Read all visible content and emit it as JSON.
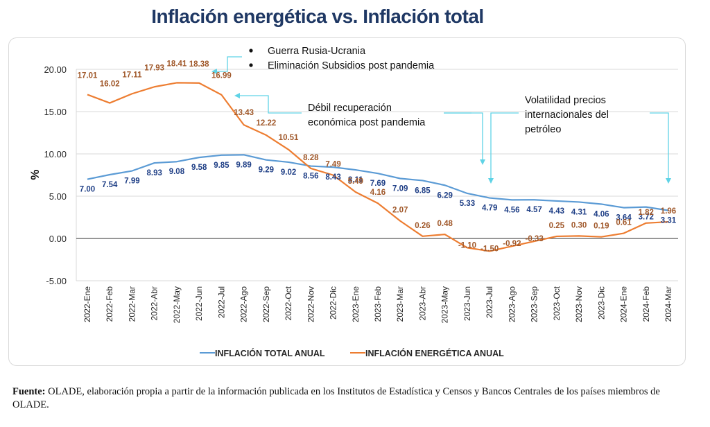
{
  "title": "Inflación energética vs. Inflación total",
  "footer": {
    "label": "Fuente:",
    "text": " OLADE, elaboración propia a partir de la información publicada en los Institutos de Estadística y Censos y Bancos Centrales de los países miembros de OLADE."
  },
  "chart_data": {
    "type": "line",
    "title": "Inflación energética vs. Inflación total",
    "xlabel": "",
    "ylabel": "%",
    "ylim": [
      -5,
      20
    ],
    "yticks": [
      -5,
      0,
      5,
      10,
      15,
      20
    ],
    "ytick_labels": [
      "-5.00",
      "0.00",
      "5.00",
      "10.00",
      "15.00",
      "20.00"
    ],
    "grid": true,
    "legend_position": "bottom",
    "categories": [
      "2022-Ene",
      "2022-Feb",
      "2022-Mar",
      "2022-Abr",
      "2022-May",
      "2022-Jun",
      "2022-Jul",
      "2022-Ago",
      "2022-Sep",
      "2022-Oct",
      "2022-Nov",
      "2022-Dic",
      "2023-Ene",
      "2023-Feb",
      "2023-Mar",
      "2023-Abr",
      "2023-May",
      "2023-Jun",
      "2023-Jul",
      "2023-Ago",
      "2023-Sep",
      "2023-Oct",
      "2023-Nov",
      "2023-Dic",
      "2024-Ene",
      "2024-Feb",
      "2024-Mar"
    ],
    "series": [
      {
        "name": "INFLACIÓN TOTAL ANUAL",
        "color": "#5b9bd5",
        "label_color": "#1f3f86",
        "values": [
          7.0,
          7.54,
          7.99,
          8.93,
          9.08,
          9.58,
          9.85,
          9.89,
          9.29,
          9.02,
          8.56,
          8.43,
          8.11,
          7.69,
          7.09,
          6.85,
          6.29,
          5.33,
          4.79,
          4.56,
          4.57,
          4.43,
          4.31,
          4.06,
          3.64,
          3.72,
          3.31
        ]
      },
      {
        "name": "INFLACIÓN ENERGÉTICA ANUAL",
        "color": "#ed7d31",
        "label_color": "#a0582a",
        "values": [
          17.01,
          16.02,
          17.11,
          17.93,
          18.41,
          18.38,
          16.99,
          13.43,
          12.22,
          10.51,
          8.28,
          7.49,
          5.49,
          4.16,
          2.07,
          0.26,
          0.48,
          -1.1,
          -1.5,
          -0.92,
          -0.33,
          0.25,
          0.3,
          0.19,
          0.61,
          1.82,
          1.96
        ]
      }
    ],
    "annotations": [
      {
        "id": "war",
        "lines": [
          "Guerra Rusia-Ucrania",
          "Eliminación Subsidios post pandemia"
        ],
        "bulleted": true,
        "points_to": [
          "2022-Jun"
        ]
      },
      {
        "id": "recovery",
        "lines": [
          "Débil recuperación",
          "económica post pandemia"
        ],
        "bulleted": false,
        "points_to": [
          "2022-Jul"
        ]
      },
      {
        "id": "oil",
        "lines": [
          "Volatilidad precios",
          "internacionales del",
          "petróleo"
        ],
        "bulleted": false,
        "points_to": [
          "2023-Jun",
          "2023-Jul",
          "2024-Mar"
        ]
      }
    ],
    "annotation_color": "#5fd3e6"
  }
}
